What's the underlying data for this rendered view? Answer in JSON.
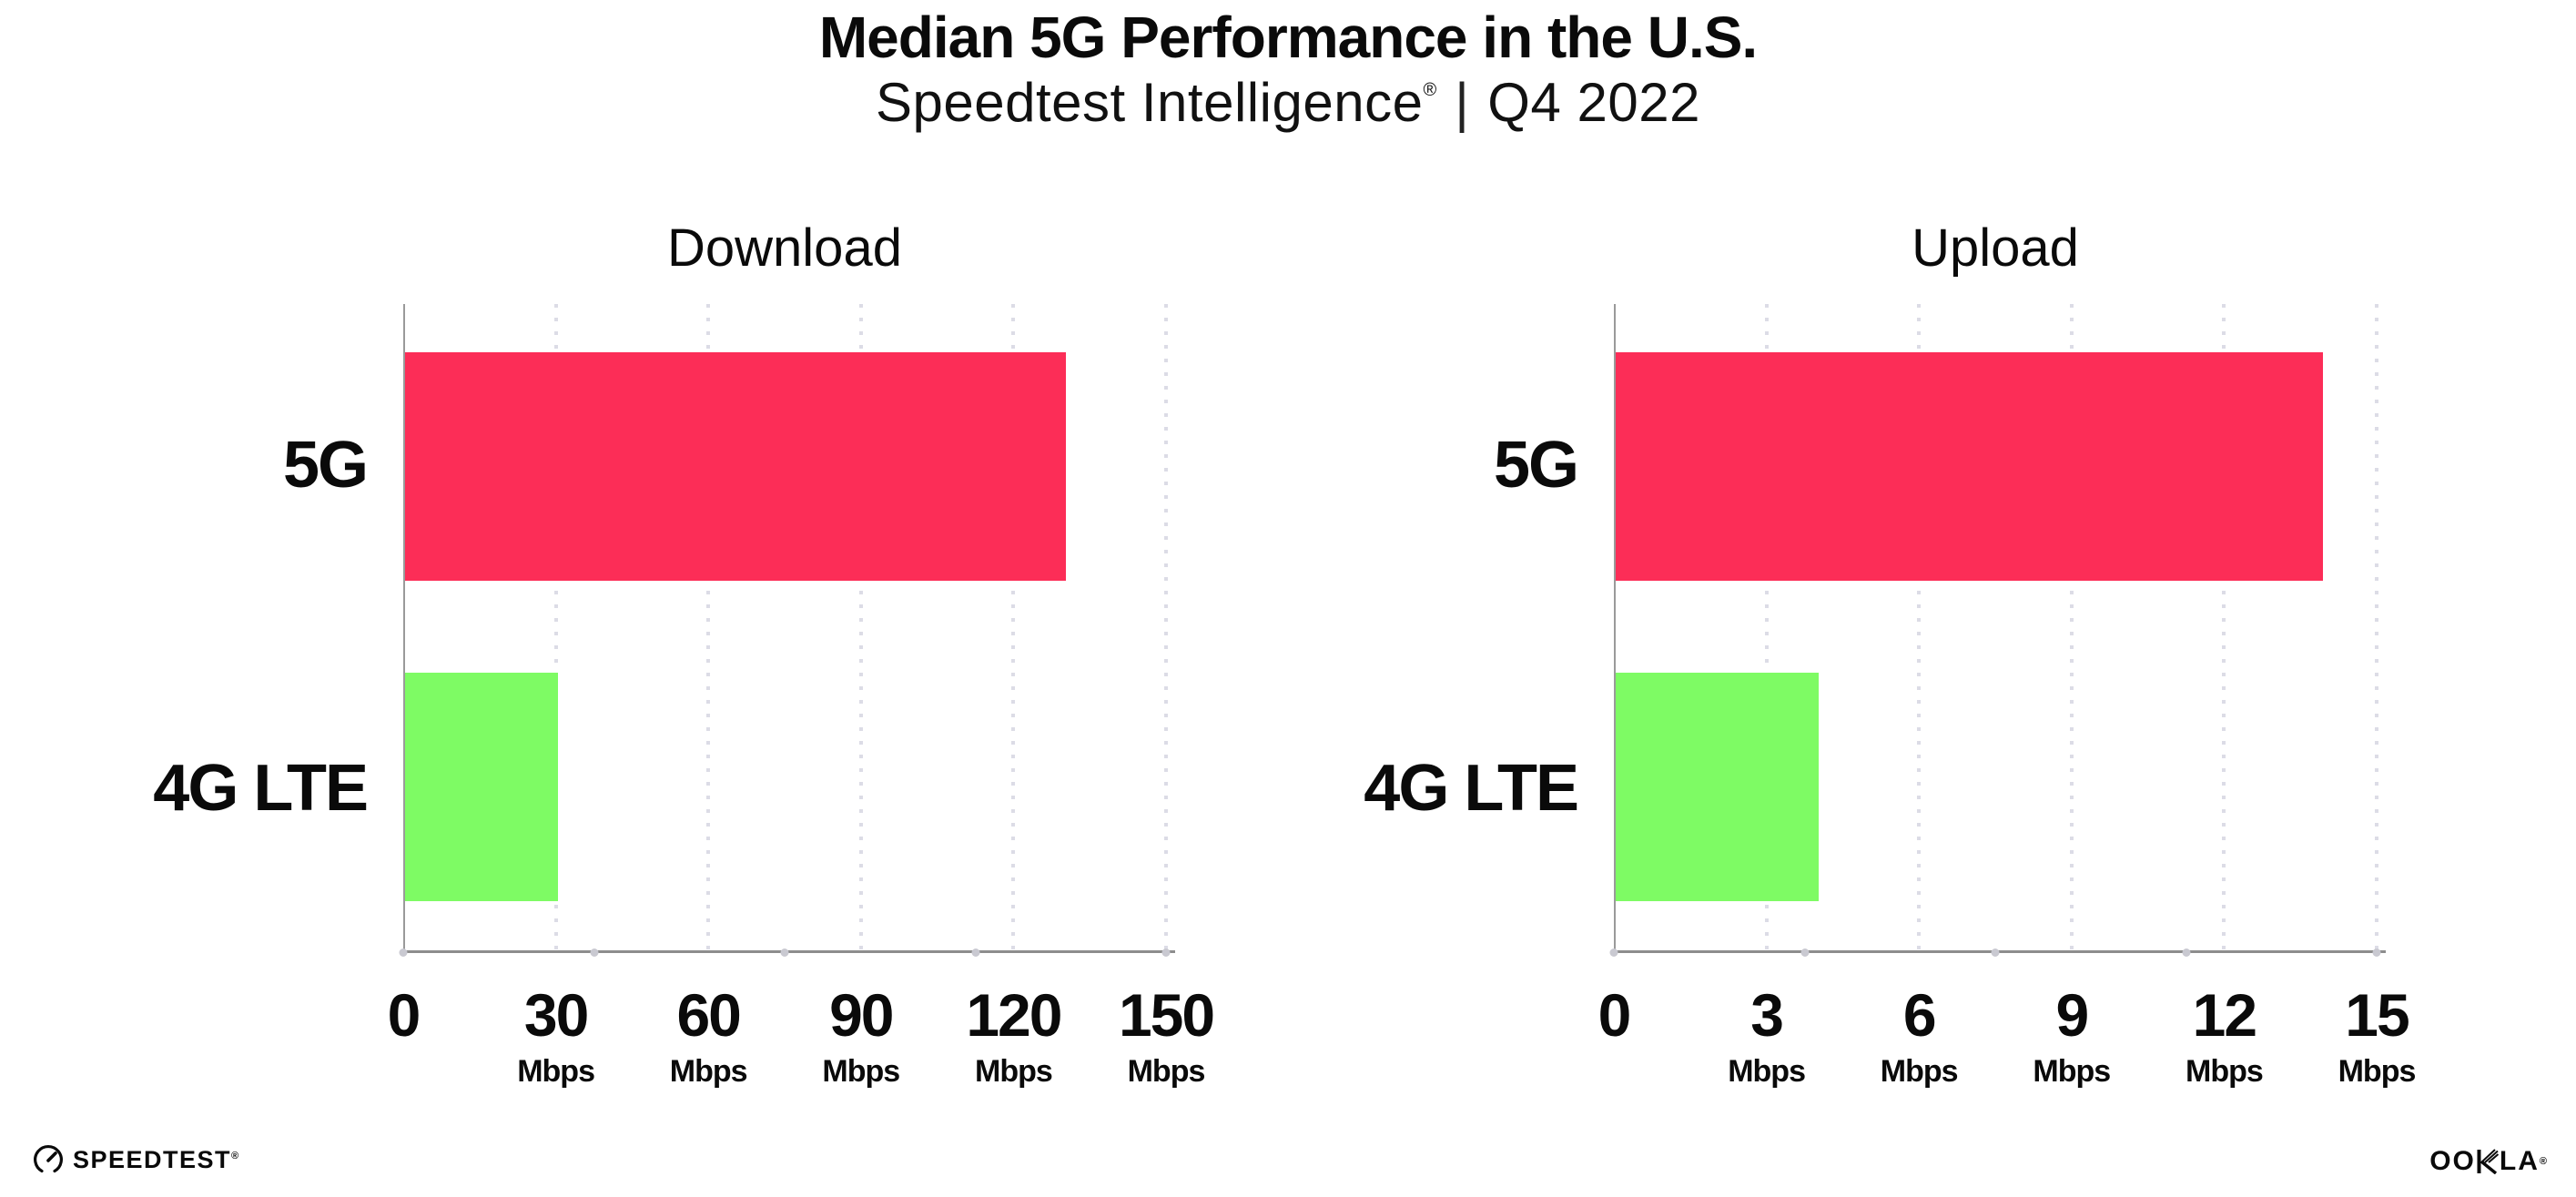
{
  "header": {
    "title": "Median 5G Performance in the U.S.",
    "subtitle_brand": "Speedtest Intelligence",
    "subtitle_reg": "®",
    "subtitle_separator": "|",
    "subtitle_period": "Q4 2022"
  },
  "chart_data": [
    {
      "type": "bar",
      "orientation": "horizontal",
      "title": "Download",
      "categories": [
        "5G",
        "4G LTE"
      ],
      "values": [
        130,
        30
      ],
      "unit": "Mbps",
      "xlim": [
        0,
        150
      ],
      "xticks": [
        0,
        30,
        60,
        90,
        120,
        150
      ],
      "bar_colors": [
        "#FC2D57",
        "#7EFB64"
      ],
      "grid": "vertical-dotted",
      "legend": "none"
    },
    {
      "type": "bar",
      "orientation": "horizontal",
      "title": "Upload",
      "categories": [
        "5G",
        "4G LTE"
      ],
      "values": [
        13.9,
        4
      ],
      "unit": "Mbps",
      "xlim": [
        0,
        15
      ],
      "xticks": [
        0,
        3,
        6,
        9,
        12,
        15
      ],
      "bar_colors": [
        "#FC2D57",
        "#7EFB64"
      ],
      "grid": "vertical-dotted",
      "legend": "none"
    }
  ],
  "colors": {
    "bar_5g": "#FC2D57",
    "bar_4g_lte": "#7EFB64",
    "axis_line": "#8d8d8d",
    "grid_dot": "#dcdce6",
    "text": "#0a0a0a",
    "background": "#ffffff"
  },
  "footer": {
    "left_logo": "SPEEDTEST",
    "left_logo_mark": "®",
    "left_logo_icon": "speedtest-gauge-icon",
    "right_logo": "OOKLA",
    "right_logo_prefix": "OO",
    "right_logo_suffix": "LA",
    "right_logo_mark": "®"
  }
}
